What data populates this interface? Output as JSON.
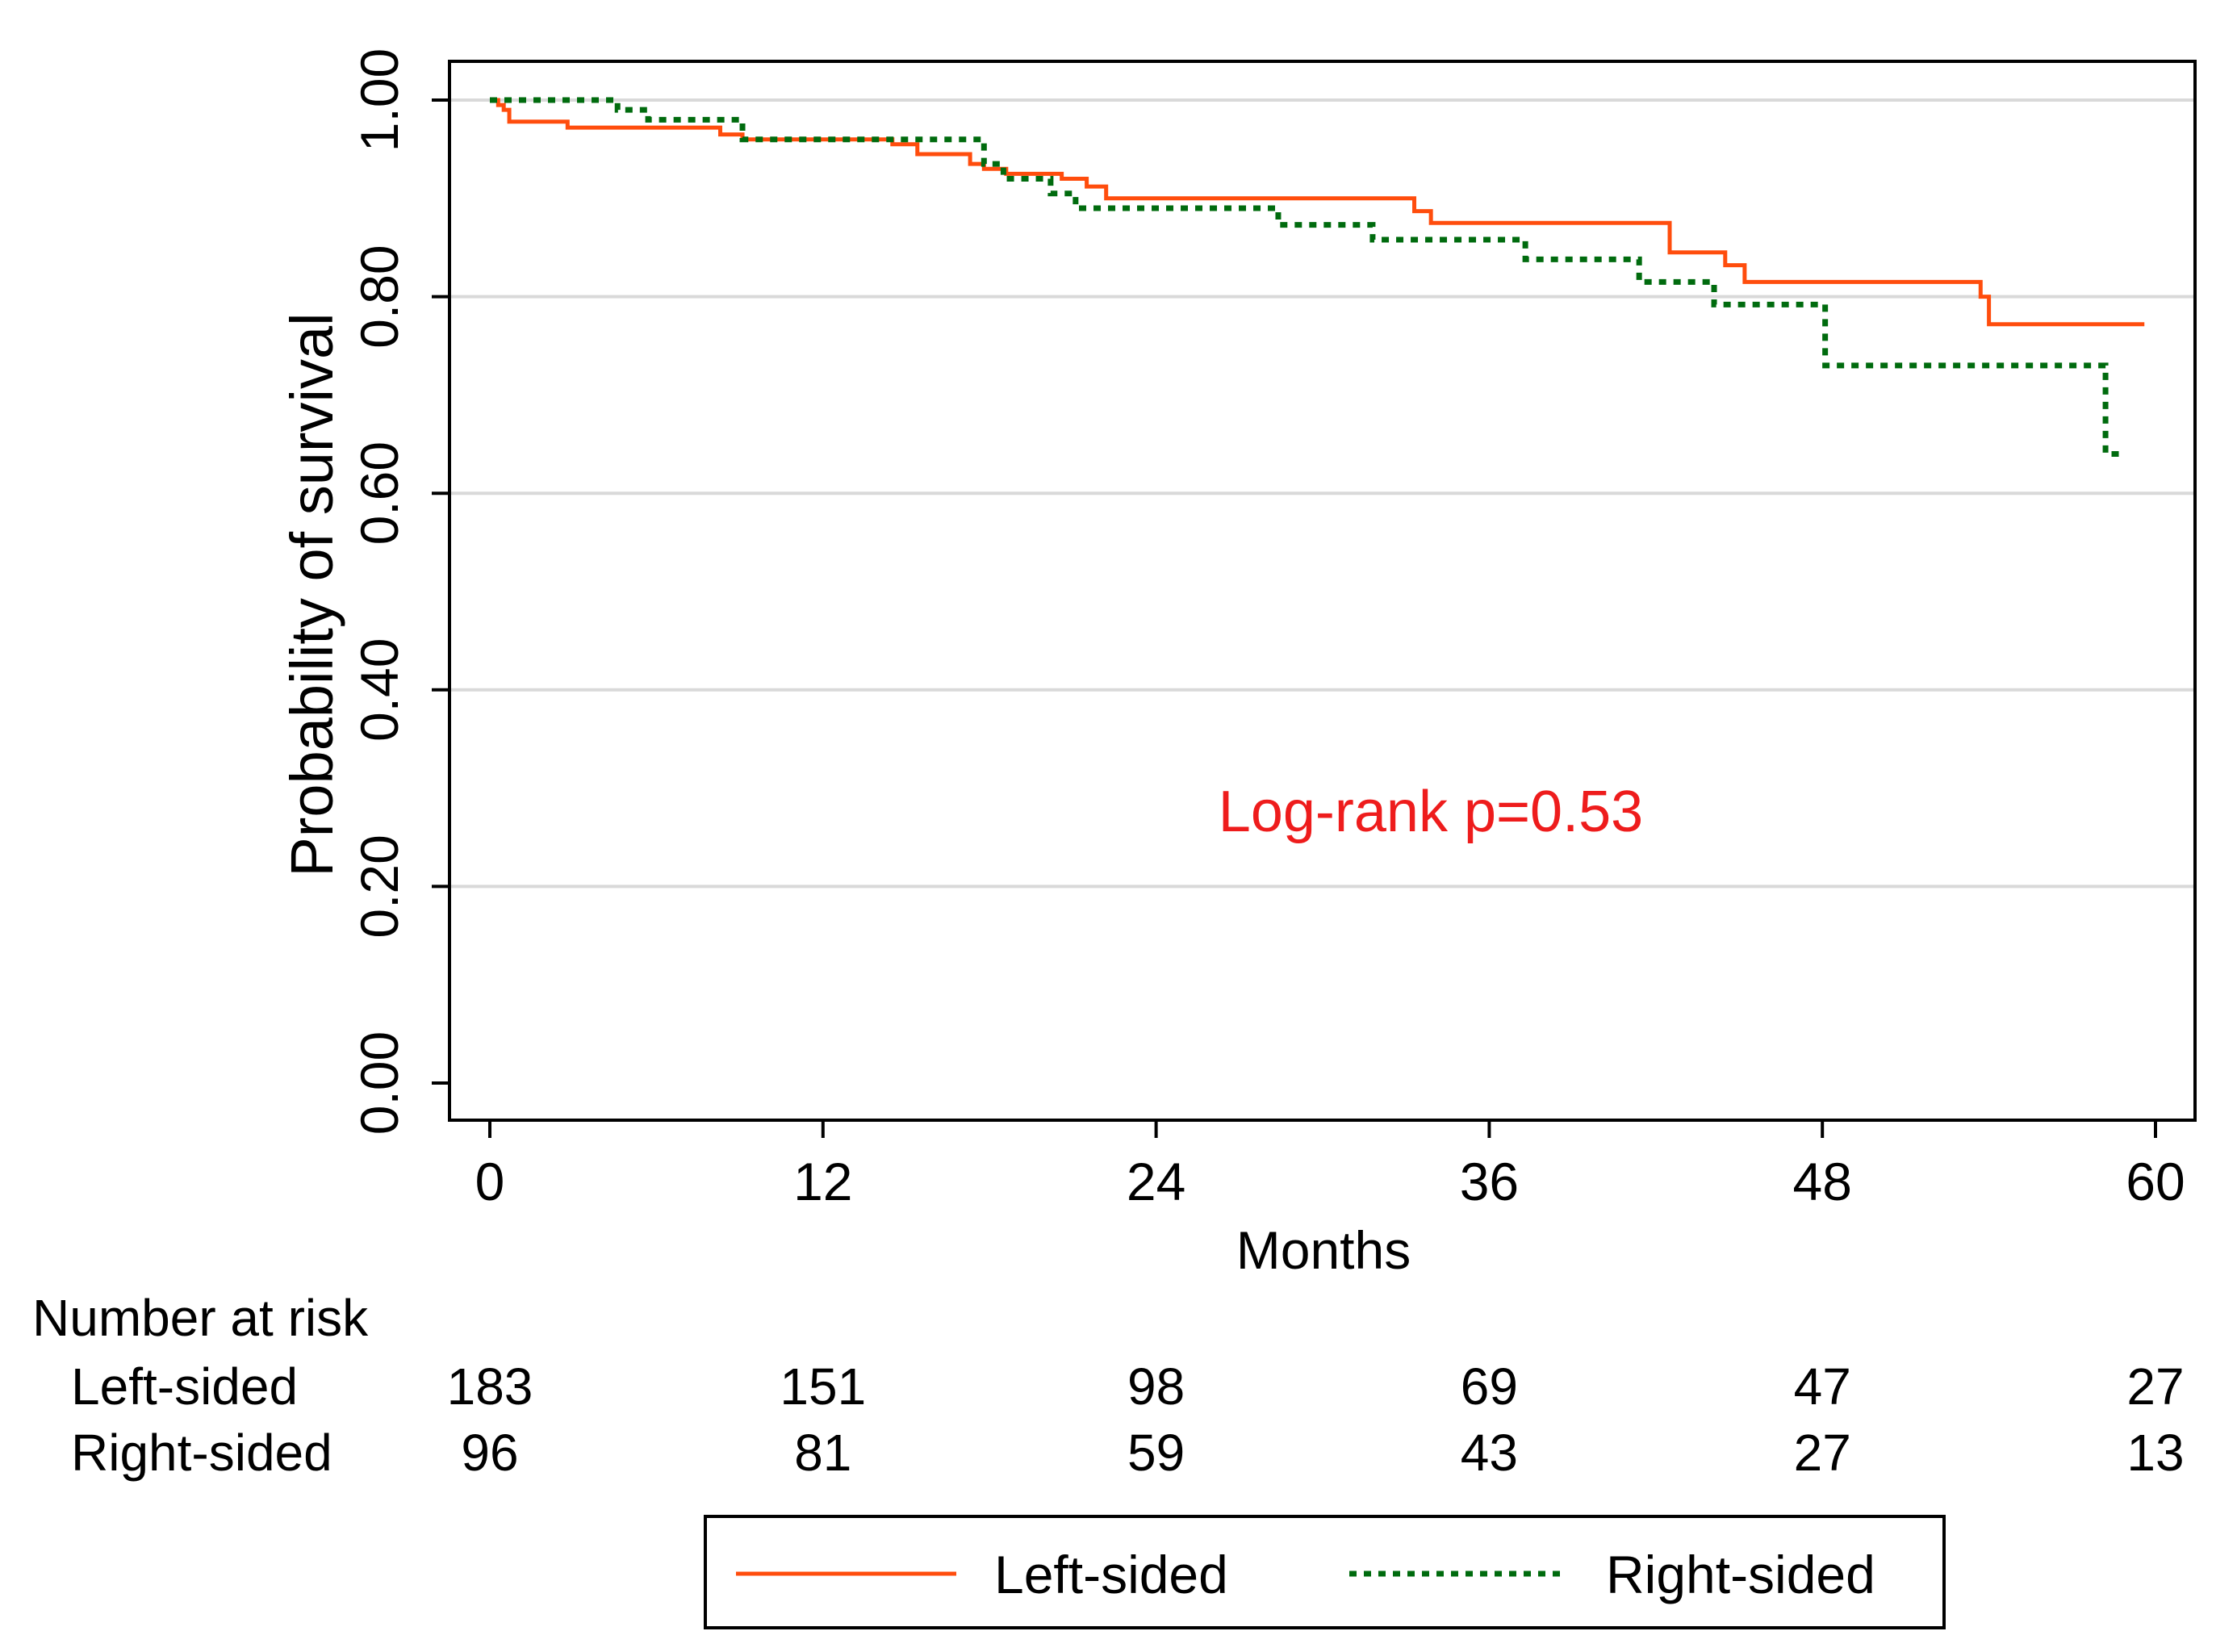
{
  "chart_data": {
    "type": "line",
    "subtype": "kaplan-meier",
    "title": "",
    "xlabel": "Months",
    "ylabel": "Probability of survival",
    "xlim": [
      0,
      60
    ],
    "ylim": [
      0,
      1
    ],
    "x_ticks": [
      0,
      12,
      24,
      36,
      48,
      60
    ],
    "x_tick_labels": [
      "0",
      "12",
      "24",
      "36",
      "48",
      "60"
    ],
    "y_ticks": [
      0,
      0.2,
      0.4,
      0.6,
      0.8,
      1.0
    ],
    "y_tick_labels": [
      "0.00",
      "0.20",
      "0.40",
      "0.60",
      "0.80",
      "1.00"
    ],
    "grid": "horizontal",
    "annotation": {
      "text": "Log-rank p=0.53",
      "color": "#ee1c1c"
    },
    "series": [
      {
        "name": "Left-sided",
        "color": "#ff4d0d",
        "dash": "solid",
        "steps": [
          [
            0,
            1.0
          ],
          [
            0.3,
            0.995
          ],
          [
            0.5,
            0.99
          ],
          [
            0.7,
            0.978
          ],
          [
            2.8,
            0.972
          ],
          [
            8.3,
            0.965
          ],
          [
            9.1,
            0.96
          ],
          [
            14.5,
            0.955
          ],
          [
            15.4,
            0.945
          ],
          [
            17.3,
            0.935
          ],
          [
            17.8,
            0.93
          ],
          [
            18.6,
            0.925
          ],
          [
            20.6,
            0.92
          ],
          [
            21.5,
            0.912
          ],
          [
            22.2,
            0.9
          ],
          [
            33.3,
            0.887
          ],
          [
            33.9,
            0.875
          ],
          [
            42.5,
            0.845
          ],
          [
            44.5,
            0.832
          ],
          [
            45.2,
            0.815
          ],
          [
            53.7,
            0.8
          ],
          [
            54.0,
            0.772
          ],
          [
            59.6,
            0.772
          ]
        ]
      },
      {
        "name": "Right-sided",
        "color": "#006b0e",
        "dash": "dotted",
        "steps": [
          [
            0,
            1.0
          ],
          [
            4.6,
            0.99
          ],
          [
            5.7,
            0.98
          ],
          [
            9.1,
            0.96
          ],
          [
            17.8,
            0.935
          ],
          [
            18.5,
            0.92
          ],
          [
            20.2,
            0.905
          ],
          [
            21.1,
            0.89
          ],
          [
            28.4,
            0.873
          ],
          [
            31.8,
            0.858
          ],
          [
            37.3,
            0.838
          ],
          [
            41.4,
            0.815
          ],
          [
            44.1,
            0.792
          ],
          [
            48.1,
            0.73
          ],
          [
            58.2,
            0.64
          ],
          [
            58.9,
            0.64
          ]
        ]
      }
    ],
    "risk_table": {
      "header": "Number at risk",
      "rows": [
        {
          "label": "Left-sided",
          "values": [
            "183",
            "151",
            "98",
            "69",
            "47",
            "27"
          ]
        },
        {
          "label": "Right-sided",
          "values": [
            "96",
            "81",
            "59",
            "43",
            "27",
            "13"
          ]
        }
      ]
    },
    "legend": {
      "position": "bottom",
      "entries": [
        "Left-sided",
        "Right-sided"
      ]
    }
  }
}
